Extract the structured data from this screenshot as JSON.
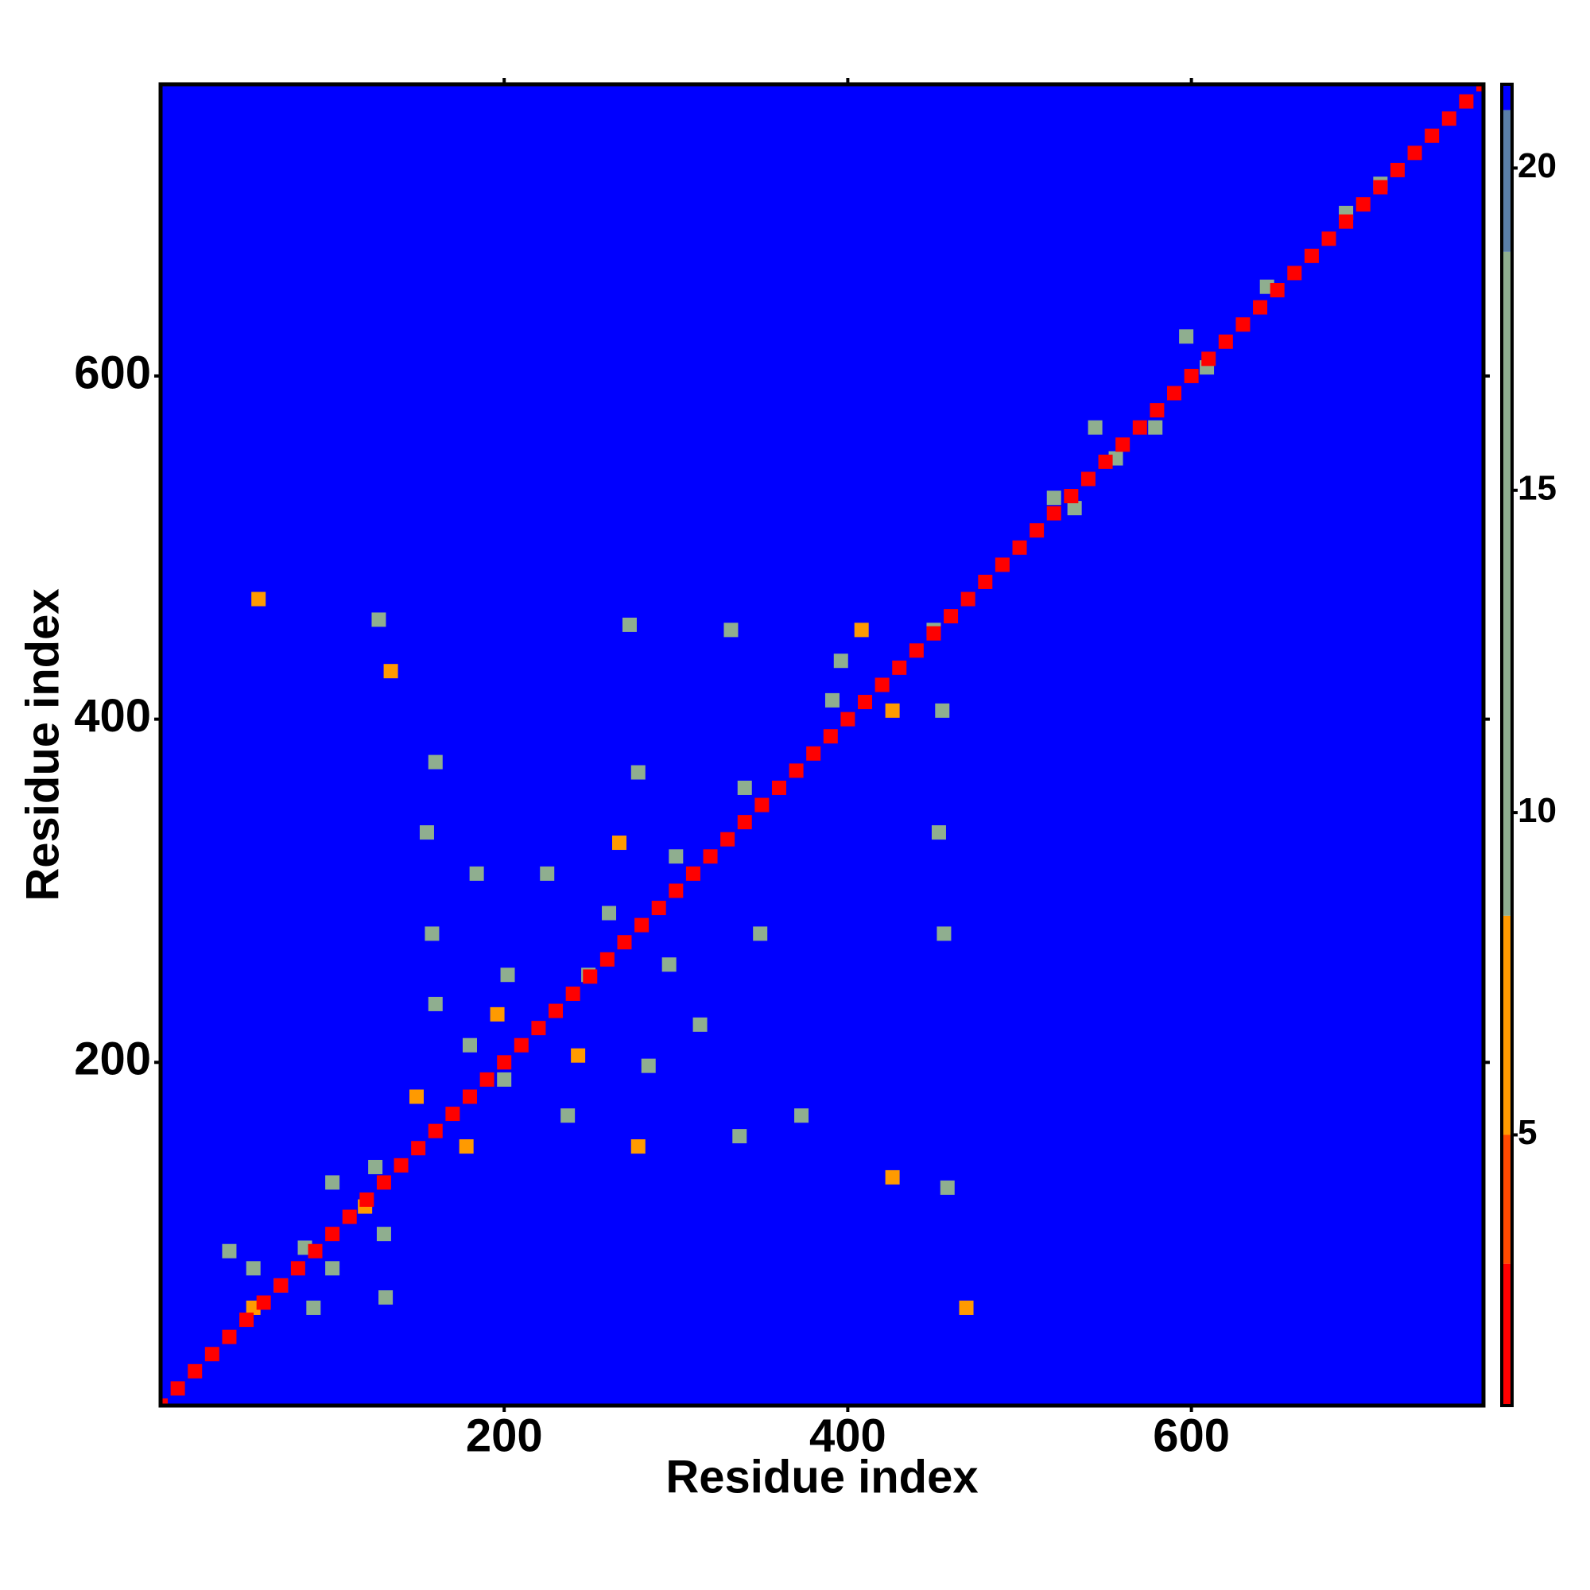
{
  "chart_data": {
    "type": "heatmap",
    "xlabel": "Residue index",
    "ylabel": "Residue index",
    "xlim": [
      0,
      770
    ],
    "ylim": [
      0,
      770
    ],
    "xticks": [
      200,
      400,
      600
    ],
    "yticks": [
      200,
      400,
      600
    ],
    "background_color": "#0000ff",
    "clim": [
      0.8,
      21.3
    ],
    "cticks": [
      5,
      10,
      15,
      20
    ],
    "colormap": [
      {
        "max": 3,
        "color": "#ff0000"
      },
      {
        "max": 5,
        "color": "#ff4a00"
      },
      {
        "max": 8.4,
        "color": "#ff9a00"
      },
      {
        "max": 18.7,
        "color": "#8fae8f"
      },
      {
        "max": 20.9,
        "color": "#5a7fa8"
      },
      {
        "max": 21.3,
        "color": "#0000ff"
      }
    ],
    "x": [
      54,
      84,
      54,
      89,
      70,
      40,
      100,
      125,
      119,
      131,
      100,
      130,
      57,
      469,
      127,
      134,
      426,
      458,
      160,
      155,
      158,
      160,
      149,
      178,
      237,
      278,
      284,
      243,
      196,
      202,
      249,
      261,
      296,
      314,
      349,
      373,
      337,
      278,
      267,
      225,
      184,
      332,
      273,
      200,
      180,
      300,
      340,
      396,
      426,
      455,
      450,
      408,
      391,
      453,
      456,
      520,
      556,
      609,
      644,
      544,
      579,
      597,
      532,
      690,
      710,
      0,
      10,
      20,
      30,
      40,
      50,
      60,
      70,
      80,
      90,
      100,
      110,
      120,
      130,
      140,
      150,
      160,
      170,
      180,
      190,
      200,
      210,
      220,
      230,
      240,
      250,
      260,
      270,
      280,
      290,
      300,
      310,
      320,
      330,
      340,
      350,
      360,
      370,
      380,
      390,
      400,
      410,
      420,
      430,
      440,
      450,
      460,
      470,
      480,
      490,
      500,
      510,
      520,
      530,
      540,
      550,
      560,
      570,
      580,
      590,
      600,
      610,
      620,
      630,
      640,
      650,
      660,
      670,
      680,
      690,
      700,
      710,
      720,
      730,
      740,
      750,
      760,
      770
    ],
    "y": [
      80,
      92,
      57,
      57,
      70,
      90,
      80,
      139,
      116,
      63,
      130,
      100,
      470,
      57,
      458,
      428,
      133,
      127,
      375,
      334,
      275,
      234,
      180,
      151,
      169,
      151,
      198,
      204,
      228,
      251,
      251,
      287,
      257,
      222,
      275,
      169,
      157,
      369,
      328,
      310,
      310,
      452,
      455,
      190,
      210,
      320,
      360,
      434,
      405,
      405,
      452,
      452,
      411,
      334,
      275,
      529,
      552,
      605,
      652,
      570,
      570,
      623,
      523,
      695,
      712,
      0,
      10,
      20,
      30,
      40,
      50,
      60,
      70,
      80,
      90,
      100,
      110,
      120,
      130,
      140,
      150,
      160,
      170,
      180,
      190,
      200,
      210,
      220,
      230,
      240,
      250,
      260,
      270,
      280,
      290,
      300,
      310,
      320,
      330,
      340,
      350,
      360,
      370,
      380,
      390,
      400,
      410,
      420,
      430,
      440,
      450,
      460,
      470,
      480,
      490,
      500,
      510,
      520,
      530,
      540,
      550,
      560,
      570,
      580,
      590,
      600,
      610,
      620,
      630,
      640,
      650,
      660,
      670,
      680,
      690,
      700,
      710,
      720,
      730,
      740,
      750,
      760,
      770
    ],
    "values": [
      10,
      10,
      7,
      10,
      10,
      10,
      10,
      10,
      7,
      11,
      10,
      10,
      6,
      6,
      10,
      6,
      6,
      10,
      10,
      10,
      10,
      10,
      7,
      7,
      10,
      7,
      10,
      7,
      7,
      10,
      10,
      10,
      10,
      10,
      10,
      10,
      10,
      10,
      7,
      10,
      10,
      10,
      10,
      10,
      10,
      10,
      10,
      10,
      7,
      10,
      10,
      7,
      10,
      10,
      10,
      10,
      10,
      10,
      10,
      10,
      10,
      10,
      10,
      10,
      10,
      2,
      2,
      2,
      2,
      2,
      2,
      2,
      2,
      2,
      2,
      2,
      2,
      2,
      2,
      2,
      2,
      2,
      2,
      2,
      2,
      2,
      2,
      2,
      2,
      2,
      2,
      2,
      2,
      2,
      2,
      2,
      2,
      2,
      2,
      2,
      2,
      2,
      2,
      2,
      2,
      2,
      2,
      2,
      2,
      2,
      2,
      2,
      2,
      2,
      2,
      2,
      2,
      2,
      2,
      2,
      2,
      2,
      2,
      2,
      2,
      2,
      2,
      2,
      2,
      2,
      2,
      2,
      2,
      2,
      2,
      2,
      2,
      2,
      2,
      2,
      2,
      2,
      2
    ]
  }
}
